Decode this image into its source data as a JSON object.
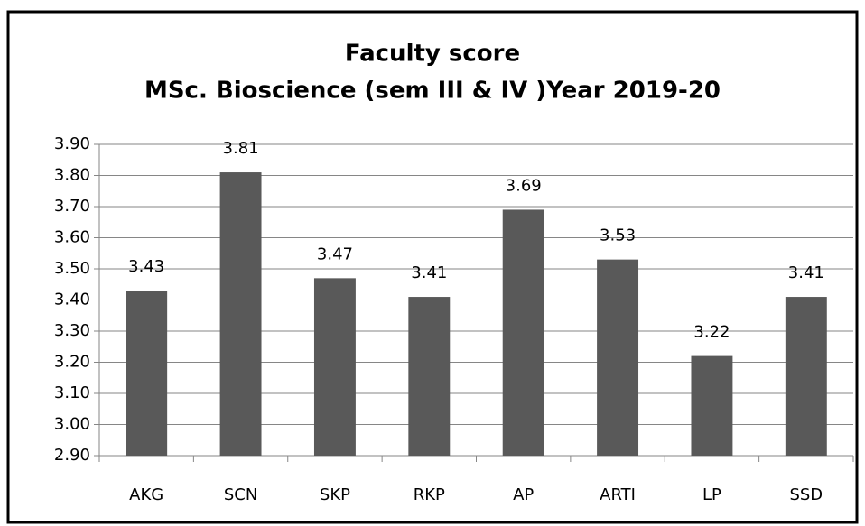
{
  "chart_data": {
    "type": "bar",
    "title": "Faculty score",
    "subtitle": "MSc. Bioscience (sem III & IV )Year 2019-20",
    "categories": [
      "AKG",
      "SCN",
      "SKP",
      "RKP",
      "AP",
      "ARTI",
      "LP",
      "SSD"
    ],
    "values": [
      3.43,
      3.81,
      3.47,
      3.41,
      3.69,
      3.53,
      3.22,
      3.41
    ],
    "color": "#595959",
    "ylim": [
      2.9,
      3.9
    ],
    "yticks": [
      {
        "value": 2.9,
        "label": "2.90"
      },
      {
        "value": 3.0,
        "label": "3.00"
      },
      {
        "value": 3.1,
        "label": "3.10"
      },
      {
        "value": 3.2,
        "label": "3.20"
      },
      {
        "value": 3.3,
        "label": "3.30"
      },
      {
        "value": 3.4,
        "label": "3.40"
      },
      {
        "value": 3.5,
        "label": "3.50"
      },
      {
        "value": 3.6,
        "label": "3.60"
      },
      {
        "value": 3.7,
        "label": "3.70"
      },
      {
        "value": 3.8,
        "label": "3.80"
      },
      {
        "value": 3.9,
        "label": "3.90"
      }
    ],
    "grid": true
  }
}
